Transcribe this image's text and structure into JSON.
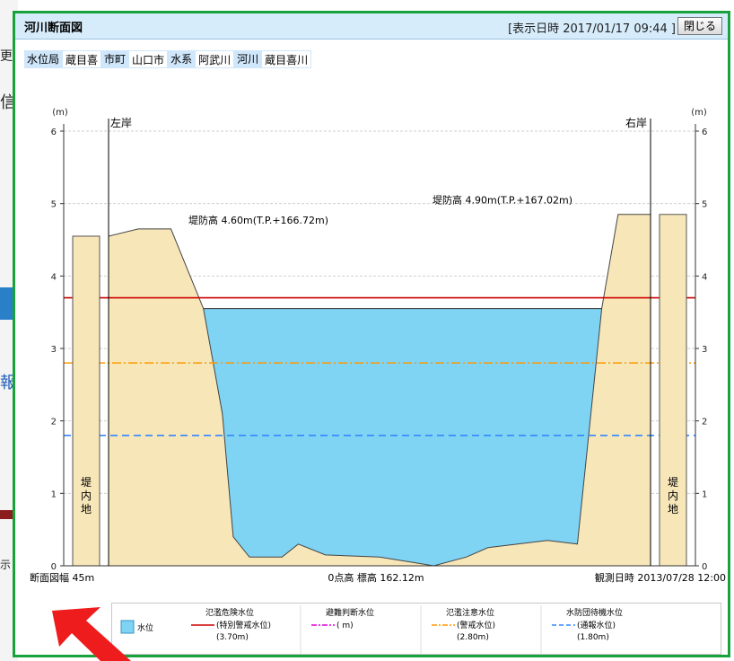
{
  "popup": {
    "title": "河川断面図",
    "display_time": "[表示日時 2017/01/17 09:44 ]",
    "close_label": "閉じる"
  },
  "breadcrumb": [
    {
      "label": "水位局",
      "value": "蔵目喜"
    },
    {
      "label": "市町",
      "value": "山口市"
    },
    {
      "label": "水系",
      "value": "阿武川"
    },
    {
      "label": "河川",
      "value": "蔵目喜川"
    }
  ],
  "chart_data": {
    "type": "area",
    "unit_left": "(m)",
    "unit_right": "(m)",
    "ylim": [
      0,
      6
    ],
    "yticks": [
      "0",
      "1",
      "2",
      "3",
      "4",
      "5",
      "6"
    ],
    "bank_left": "左岸",
    "bank_right": "右岸",
    "levee_left": "堤防高 4.60m(T.P.+166.72m)",
    "levee_right": "堤防高 4.90m(T.P.+167.02m)",
    "inland_left": "堤内地",
    "inland_right": "堤内地",
    "width_label": "断面図幅 45m",
    "zero_label": "0点高 標高 162.12m",
    "observed_label": "観測日時 2013/07/28 12:00",
    "water_level": 3.55,
    "cross_section": [
      [
        0,
        4.55
      ],
      [
        0.55,
        4.65
      ],
      [
        1.15,
        4.65
      ],
      [
        1.75,
        3.55
      ],
      [
        2.1,
        2.1
      ],
      [
        2.3,
        0.4
      ],
      [
        2.6,
        0.12
      ],
      [
        3.2,
        0.12
      ],
      [
        3.5,
        0.3
      ],
      [
        4.0,
        0.15
      ],
      [
        5.0,
        0.12
      ],
      [
        6.0,
        0.0
      ],
      [
        6.6,
        0.12
      ],
      [
        7.0,
        0.25
      ],
      [
        8.1,
        0.35
      ],
      [
        8.65,
        0.3
      ],
      [
        9.1,
        3.55
      ],
      [
        9.4,
        4.85
      ],
      [
        10.0,
        4.85
      ]
    ],
    "levels": [
      {
        "name": "氾濫危険水位",
        "sub": "(特別警戒水位)",
        "value_text": "(3.70m)",
        "value": 3.7,
        "color": "#cc0000",
        "dash": "solid"
      },
      {
        "name": "避難判断水位",
        "sub": "",
        "value_text": "(    m)",
        "value": null,
        "color": "#e000e0",
        "dash": "dash-dot"
      },
      {
        "name": "氾濫注意水位",
        "sub": "(警戒水位)",
        "value_text": "(2.80m)",
        "value": 2.8,
        "color": "#ff9900",
        "dash": "dash-dot"
      },
      {
        "name": "水防団待機水位",
        "sub": "(通報水位)",
        "value_text": "(1.80m)",
        "value": 1.8,
        "color": "#3388ff",
        "dash": "dash"
      }
    ],
    "water_legend": "水位",
    "colors": {
      "water": "#7fd3f3",
      "ground": "#f7e6b8",
      "ground_line": "#444444"
    }
  },
  "background": {
    "fragments": [
      "更",
      "信",
      "報",
      "示"
    ]
  }
}
